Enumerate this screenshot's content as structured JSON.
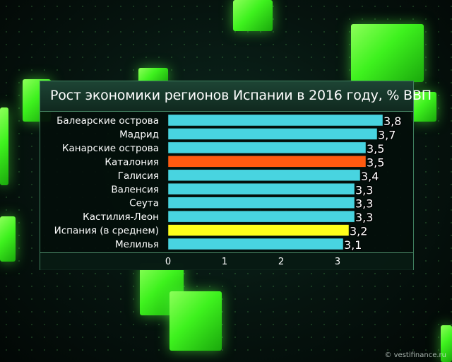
{
  "chart_data": {
    "type": "bar",
    "orientation": "horizontal",
    "title": "Рост экономики регионов Испании в 2016 году, % ВВП",
    "categories": [
      "Балеарские острова",
      "Мадрид",
      "Канарские острова",
      "Каталония",
      "Галисия",
      "Валенсия",
      "Сеута",
      "Кастилия-Леон",
      "Испания (в среднем)",
      "Мелилья"
    ],
    "values": [
      3.8,
      3.7,
      3.5,
      3.5,
      3.4,
      3.3,
      3.3,
      3.3,
      3.2,
      3.1
    ],
    "value_labels": [
      "3,8",
      "3,7",
      "3,5",
      "3,5",
      "3,4",
      "3,3",
      "3,3",
      "3,3",
      "3,2",
      "3,1"
    ],
    "bar_colors": [
      "#48d4e0",
      "#48d4e0",
      "#48d4e0",
      "#ff5a10",
      "#48d4e0",
      "#48d4e0",
      "#48d4e0",
      "#48d4e0",
      "#ffff1a",
      "#48d4e0"
    ],
    "xticks": [
      0,
      1,
      2,
      3
    ],
    "xtick_labels": [
      "0",
      "1",
      "2",
      "3"
    ],
    "xlim": [
      0,
      3.8
    ],
    "grid": false,
    "legend": "none"
  },
  "watermark": "© vestifinance.ru"
}
